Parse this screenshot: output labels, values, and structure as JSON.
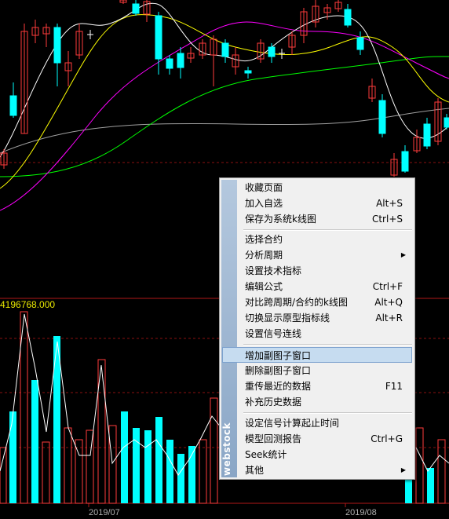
{
  "chart_data": {
    "type": "candlestick",
    "volume_label": "4196768.000",
    "x_labels": [
      "2019/07",
      "2019/08"
    ],
    "colors": {
      "up": "#ff3b3b",
      "down": "#00ffff",
      "ma5": "#ffffff",
      "ma10": "#ffff00",
      "ma20": "#ff00ff",
      "ma60": "#00ff00",
      "ma120": "#a0a0a0"
    }
  },
  "menu": {
    "watermark": "webstock",
    "items": [
      {
        "label": "收藏页面",
        "shortcut": ""
      },
      {
        "label": "加入自选",
        "shortcut": "Alt+S"
      },
      {
        "label": "保存为系统k线图",
        "shortcut": "Ctrl+S"
      },
      {
        "label": "选择合约",
        "shortcut": ""
      },
      {
        "label": "分析周期",
        "shortcut": ""
      },
      {
        "label": "设置技术指标",
        "shortcut": ""
      },
      {
        "label": "编辑公式",
        "shortcut": "Ctrl+F"
      },
      {
        "label": "对比跨周期/合约的k线图",
        "shortcut": "Alt+Q"
      },
      {
        "label": "切换显示原型指标线",
        "shortcut": "Alt+R"
      },
      {
        "label": "设置信号连线",
        "shortcut": ""
      },
      {
        "label": "增加副图子窗口",
        "shortcut": ""
      },
      {
        "label": "删除副图子窗口",
        "shortcut": ""
      },
      {
        "label": "重传最近的数据",
        "shortcut": "F11"
      },
      {
        "label": "补充历史数据",
        "shortcut": ""
      },
      {
        "label": "设定信号计算起止时间",
        "shortcut": ""
      },
      {
        "label": "模型回测报告",
        "shortcut": "Ctrl+G"
      },
      {
        "label": "Seek统计",
        "shortcut": ""
      },
      {
        "label": "其他",
        "shortcut": ""
      }
    ]
  }
}
